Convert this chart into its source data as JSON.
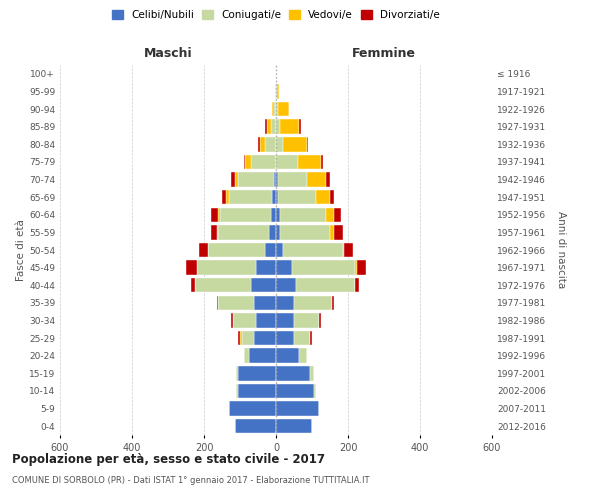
{
  "age_groups": [
    "0-4",
    "5-9",
    "10-14",
    "15-19",
    "20-24",
    "25-29",
    "30-34",
    "35-39",
    "40-44",
    "45-49",
    "50-54",
    "55-59",
    "60-64",
    "65-69",
    "70-74",
    "75-79",
    "80-84",
    "85-89",
    "90-94",
    "95-99",
    "100+"
  ],
  "birth_years": [
    "2012-2016",
    "2007-2011",
    "2002-2006",
    "1997-2001",
    "1992-1996",
    "1987-1991",
    "1982-1986",
    "1977-1981",
    "1972-1976",
    "1967-1971",
    "1962-1966",
    "1957-1961",
    "1952-1956",
    "1947-1951",
    "1942-1946",
    "1937-1941",
    "1932-1936",
    "1927-1931",
    "1922-1926",
    "1917-1921",
    "≤ 1916"
  ],
  "male": {
    "celibi": [
      115,
      130,
      105,
      105,
      75,
      60,
      55,
      60,
      70,
      55,
      30,
      20,
      15,
      10,
      5,
      0,
      0,
      0,
      0,
      0,
      0
    ],
    "coniugati": [
      0,
      0,
      5,
      5,
      15,
      35,
      65,
      100,
      155,
      165,
      160,
      140,
      140,
      120,
      100,
      70,
      30,
      15,
      5,
      2,
      0
    ],
    "vedovi": [
      0,
      0,
      0,
      0,
      0,
      5,
      0,
      0,
      0,
      0,
      0,
      5,
      5,
      10,
      10,
      15,
      15,
      10,
      5,
      0,
      0
    ],
    "divorziati": [
      0,
      0,
      0,
      0,
      0,
      5,
      5,
      5,
      10,
      30,
      25,
      15,
      20,
      10,
      10,
      5,
      5,
      5,
      0,
      0,
      0
    ]
  },
  "female": {
    "nubili": [
      100,
      120,
      105,
      95,
      65,
      50,
      50,
      50,
      55,
      45,
      20,
      10,
      10,
      5,
      5,
      0,
      0,
      0,
      0,
      0,
      0
    ],
    "coniugate": [
      0,
      0,
      5,
      10,
      20,
      45,
      70,
      105,
      165,
      175,
      165,
      140,
      130,
      105,
      80,
      60,
      20,
      10,
      5,
      2,
      0
    ],
    "vedove": [
      0,
      0,
      0,
      0,
      0,
      0,
      0,
      0,
      0,
      5,
      5,
      10,
      20,
      40,
      55,
      65,
      65,
      55,
      30,
      5,
      0
    ],
    "divorziate": [
      0,
      0,
      0,
      0,
      0,
      5,
      5,
      5,
      10,
      25,
      25,
      25,
      20,
      10,
      10,
      5,
      5,
      5,
      0,
      0,
      0
    ]
  },
  "colors": {
    "celibi": "#4472c4",
    "coniugati": "#c5d9a0",
    "vedovi": "#ffc000",
    "divorziati": "#c00000"
  },
  "legend_labels": [
    "Celibi/Nubili",
    "Coniugati/e",
    "Vedovi/e",
    "Divorziati/e"
  ],
  "title": "Popolazione per età, sesso e stato civile - 2017",
  "subtitle": "COMUNE DI SORBOLO (PR) - Dati ISTAT 1° gennaio 2017 - Elaborazione TUTTITALIA.IT",
  "xlabel_left": "Maschi",
  "xlabel_right": "Femmine",
  "ylabel_left": "Fasce di età",
  "ylabel_right": "Anni di nascita",
  "xlim": 600,
  "bg_color": "#ffffff",
  "grid_color": "#cccccc"
}
